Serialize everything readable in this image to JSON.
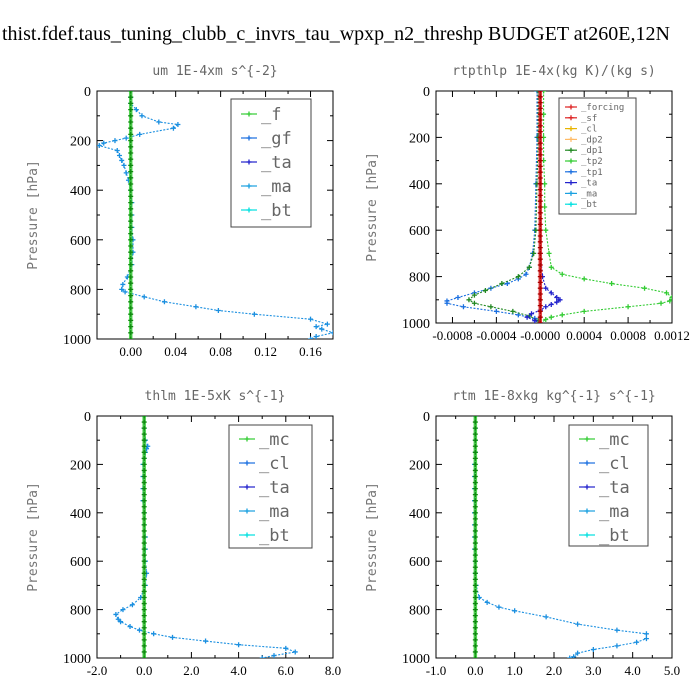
{
  "figure_title": "thist.fdef.taus_tuning_clubb_c_invrs_tau_wpxp_n2_threshp  BUDGET at260E,12N",
  "chart_data": [
    {
      "type": "line",
      "title": "um  1E-4xm s^{-2}",
      "ylabel": "Pressure [hPa]",
      "ylim": [
        1000,
        0
      ],
      "xlim": [
        -0.03,
        0.18
      ],
      "xticks": [
        "0.00",
        "0.04",
        "0.08",
        "0.12",
        "0.16"
      ],
      "xtick_values": [
        0.0,
        0.04,
        0.08,
        0.12,
        0.16
      ],
      "yticks": [
        "0",
        "200",
        "400",
        "600",
        "800",
        "1000"
      ],
      "legend": {
        "position": "top-right",
        "font_size": 17,
        "entries": [
          {
            "label": "_f",
            "color": "#33cc33"
          },
          {
            "label": "_gf",
            "color": "#1a6fe0"
          },
          {
            "label": "_ta",
            "color": "#2222cc"
          },
          {
            "label": "_ma",
            "color": "#1aa0e0"
          },
          {
            "label": "_bt",
            "color": "#00e0e0"
          }
        ]
      },
      "series": [
        {
          "name": "_bt",
          "color": "#1a8fe0",
          "y": [
            0,
            25,
            50,
            75,
            100,
            125,
            135,
            150,
            175,
            190,
            200,
            210,
            220,
            240,
            260,
            280,
            300,
            330,
            360,
            400,
            450,
            500,
            550,
            600,
            650,
            700,
            750,
            780,
            800,
            810,
            830,
            850,
            870,
            885,
            900,
            920,
            940,
            950,
            960,
            975,
            990,
            1000
          ],
          "x": [
            0,
            0,
            0,
            0.005,
            0.01,
            0.025,
            0.042,
            0.038,
            0.008,
            -0.004,
            -0.014,
            -0.024,
            -0.028,
            -0.012,
            -0.01,
            -0.008,
            -0.006,
            -0.004,
            -0.002,
            0,
            0.001,
            0.001,
            0.001,
            0.002,
            0.002,
            0.001,
            -0.003,
            -0.007,
            -0.008,
            -0.005,
            0.012,
            0.03,
            0.058,
            0.078,
            0.11,
            0.16,
            0.175,
            0.165,
            0.17,
            0.18,
            0.165,
            0.16
          ]
        },
        {
          "name": "_f",
          "color": "#33cc33",
          "y": [
            0,
            50,
            100,
            150,
            200,
            250,
            300,
            350,
            400,
            450,
            500,
            550,
            600,
            650,
            700,
            750,
            800,
            850,
            900,
            950,
            1000
          ],
          "x": [
            0,
            0,
            0,
            0,
            0,
            0,
            0,
            0,
            0,
            0,
            0,
            0,
            0,
            0,
            0,
            0,
            0,
            0,
            0,
            0,
            0
          ]
        }
      ]
    },
    {
      "type": "line",
      "title": "rtpthlp  1E-4x(kg K)/(kg s)",
      "ylabel": "Pressure [hPa]",
      "ylim": [
        1000,
        0
      ],
      "xlim": [
        -0.00095,
        0.0012
      ],
      "xticks": [
        "-0.0008",
        "-0.0004",
        "-0.0000",
        "0.0004",
        "0.0008",
        "0.0012"
      ],
      "xtick_values": [
        -0.0008,
        -0.0004,
        0.0,
        0.0004,
        0.0008,
        0.0012
      ],
      "yticks": [
        "0",
        "200",
        "400",
        "600",
        "800",
        "1000"
      ],
      "legend": {
        "position": "top-right",
        "font_size": 9,
        "entries": [
          {
            "label": "_forcing",
            "color": "#dd2222"
          },
          {
            "label": "_sf",
            "color": "#dd2222"
          },
          {
            "label": "_cl",
            "color": "#e8b400"
          },
          {
            "label": "_dp2",
            "color": "#ffbb66"
          },
          {
            "label": "_dp1",
            "color": "#228822"
          },
          {
            "label": "_tp2",
            "color": "#33cc33"
          },
          {
            "label": "_tp1",
            "color": "#1a6fe0"
          },
          {
            "label": "_ta",
            "color": "#2222cc"
          },
          {
            "label": "_ma",
            "color": "#1aa0e0"
          },
          {
            "label": "_bt",
            "color": "#00e0e0"
          }
        ]
      },
      "series": [
        {
          "name": "_tp2",
          "color": "#33cc33",
          "y": [
            0,
            100,
            200,
            300,
            400,
            500,
            600,
            700,
            760,
            790,
            810,
            830,
            850,
            870,
            890,
            905,
            915,
            930,
            950,
            965,
            975,
            985,
            1000
          ],
          "x": [
            3e-05,
            3e-05,
            3e-05,
            3e-05,
            4e-05,
            4e-05,
            5e-05,
            8e-05,
            0.0001,
            0.0002,
            0.0004,
            0.00065,
            0.00095,
            0.00115,
            0.0012,
            0.00118,
            0.0011,
            0.0008,
            0.0004,
            0.0002,
            0.0001,
            5e-05,
            0
          ]
        },
        {
          "name": "_tp1",
          "color": "#1a6fe0",
          "y": [
            0,
            200,
            400,
            600,
            700,
            760,
            790,
            810,
            830,
            850,
            870,
            890,
            905,
            915,
            930,
            950,
            965,
            980,
            1000
          ],
          "x": [
            -3e-05,
            -3e-05,
            -4e-05,
            -5e-05,
            -7e-05,
            -0.0001,
            -0.00013,
            -0.0002,
            -0.0003,
            -0.00045,
            -0.0006,
            -0.00075,
            -0.00085,
            -0.00085,
            -0.0007,
            -0.0004,
            -0.0002,
            -5e-05,
            0
          ]
        },
        {
          "name": "_dp1",
          "color": "#228822",
          "y": [
            0,
            200,
            400,
            600,
            700,
            760,
            800,
            830,
            860,
            880,
            900,
            915,
            930,
            950,
            970,
            990,
            1000
          ],
          "x": [
            -2e-05,
            -2e-05,
            -3e-05,
            -4e-05,
            -6e-05,
            -0.0001,
            -0.0002,
            -0.00035,
            -0.0005,
            -0.0006,
            -0.00065,
            -0.0006,
            -0.00045,
            -0.00025,
            -0.0001,
            -2e-05,
            0
          ]
        },
        {
          "name": "_ta",
          "color": "#2222cc",
          "y": [
            0,
            400,
            700,
            800,
            850,
            870,
            890,
            900,
            910,
            920,
            930,
            945,
            960,
            975,
            990,
            1000
          ],
          "x": [
            0,
            0,
            0,
            2e-05,
            5e-05,
            0.0001,
            0.00015,
            0.00018,
            0.00015,
            0.0001,
            5e-05,
            0,
            -8e-05,
            -0.00012,
            -5e-05,
            0
          ]
        },
        {
          "name": "_forcing",
          "color": "#dd2222",
          "y": [
            0,
            100,
            200,
            300,
            400,
            500,
            600,
            700,
            800,
            900,
            1000
          ],
          "x": [
            0,
            0,
            0,
            0,
            0,
            0,
            0,
            0,
            0,
            0,
            0
          ]
        }
      ]
    },
    {
      "type": "line",
      "title": "thlm  1E-5xK s^{-1}",
      "ylabel": "Pressure [hPa]",
      "ylim": [
        1000,
        0
      ],
      "xlim": [
        -2.0,
        8.0
      ],
      "xticks": [
        "-2.0",
        "0.0",
        "2.0",
        "4.0",
        "6.0",
        "8.0"
      ],
      "xtick_values": [
        -2.0,
        0.0,
        2.0,
        4.0,
        6.0,
        8.0
      ],
      "yticks": [
        "0",
        "200",
        "400",
        "600",
        "800",
        "1000"
      ],
      "legend": {
        "position": "top-right",
        "font_size": 17,
        "entries": [
          {
            "label": "_mc",
            "color": "#33cc33"
          },
          {
            "label": "_cl",
            "color": "#1a6fe0"
          },
          {
            "label": "_ta",
            "color": "#2222cc"
          },
          {
            "label": "_ma",
            "color": "#1aa0e0"
          },
          {
            "label": "_bt",
            "color": "#00e0e0"
          }
        ]
      },
      "series": [
        {
          "name": "_bt",
          "color": "#1a8fe0",
          "y": [
            0,
            50,
            100,
            125,
            135,
            150,
            175,
            200,
            250,
            300,
            350,
            400,
            450,
            500,
            550,
            600,
            650,
            700,
            750,
            780,
            800,
            820,
            840,
            850,
            870,
            885,
            900,
            915,
            930,
            945,
            960,
            975,
            990,
            1000
          ],
          "x": [
            0,
            0,
            0.05,
            0.15,
            0.1,
            0.05,
            0,
            -0.05,
            -0.05,
            -0.05,
            -0.05,
            0,
            0,
            0.05,
            0.05,
            0.05,
            0.1,
            0.05,
            -0.15,
            -0.5,
            -0.9,
            -1.2,
            -1.1,
            -1.0,
            -0.6,
            -0.2,
            0.4,
            1.2,
            2.6,
            4.0,
            6.0,
            6.4,
            5.5,
            5.0
          ]
        },
        {
          "name": "_mc",
          "color": "#33cc33",
          "y": [
            0,
            50,
            100,
            150,
            200,
            250,
            300,
            350,
            400,
            450,
            500,
            550,
            600,
            650,
            700,
            750,
            800,
            850,
            900,
            950,
            1000
          ],
          "x": [
            0,
            0,
            0,
            0,
            0,
            0,
            0,
            0,
            0,
            0,
            0,
            0,
            0,
            0,
            0,
            0,
            0,
            0,
            0,
            0,
            0
          ]
        }
      ]
    },
    {
      "type": "line",
      "title": "rtm  1E-8xkg kg^{-1} s^{-1}",
      "ylabel": "Pressure [hPa]",
      "ylim": [
        1000,
        0
      ],
      "xlim": [
        -1.0,
        5.0
      ],
      "xticks": [
        "-1.0",
        "0.0",
        "1.0",
        "2.0",
        "3.0",
        "4.0",
        "5.0"
      ],
      "xtick_values": [
        -1.0,
        0.0,
        1.0,
        2.0,
        3.0,
        4.0,
        5.0
      ],
      "yticks": [
        "0",
        "200",
        "400",
        "600",
        "800",
        "1000"
      ],
      "legend": {
        "position": "top-right",
        "font_size": 17,
        "entries": [
          {
            "label": "_mc",
            "color": "#33cc33"
          },
          {
            "label": "_cl",
            "color": "#1a6fe0"
          },
          {
            "label": "_ta",
            "color": "#2222cc"
          },
          {
            "label": "_ma",
            "color": "#1aa0e0"
          },
          {
            "label": "_bt",
            "color": "#00e0e0"
          }
        ]
      },
      "series": [
        {
          "name": "_bt",
          "color": "#1a8fe0",
          "y": [
            0,
            50,
            100,
            150,
            200,
            250,
            300,
            350,
            400,
            450,
            500,
            550,
            600,
            650,
            700,
            750,
            770,
            790,
            805,
            830,
            860,
            885,
            900,
            920,
            935,
            950,
            965,
            980,
            995,
            1000
          ],
          "x": [
            0,
            0,
            0,
            0,
            -0.02,
            -0.02,
            -0.02,
            -0.02,
            -0.02,
            -0.02,
            -0.02,
            -0.02,
            0,
            0,
            0.02,
            0.1,
            0.3,
            0.6,
            1.0,
            1.8,
            2.6,
            3.6,
            4.35,
            4.35,
            4.1,
            3.6,
            3.0,
            2.6,
            2.5,
            2.4
          ]
        },
        {
          "name": "_mc",
          "color": "#33cc33",
          "y": [
            0,
            50,
            100,
            150,
            200,
            250,
            300,
            350,
            400,
            450,
            500,
            550,
            600,
            650,
            700,
            750,
            800,
            850,
            900,
            950,
            1000
          ],
          "x": [
            0,
            0,
            0,
            0,
            0,
            0,
            0,
            0,
            0,
            0,
            0,
            0,
            0,
            0,
            0,
            0,
            0,
            0,
            0,
            0,
            0
          ]
        }
      ]
    }
  ]
}
